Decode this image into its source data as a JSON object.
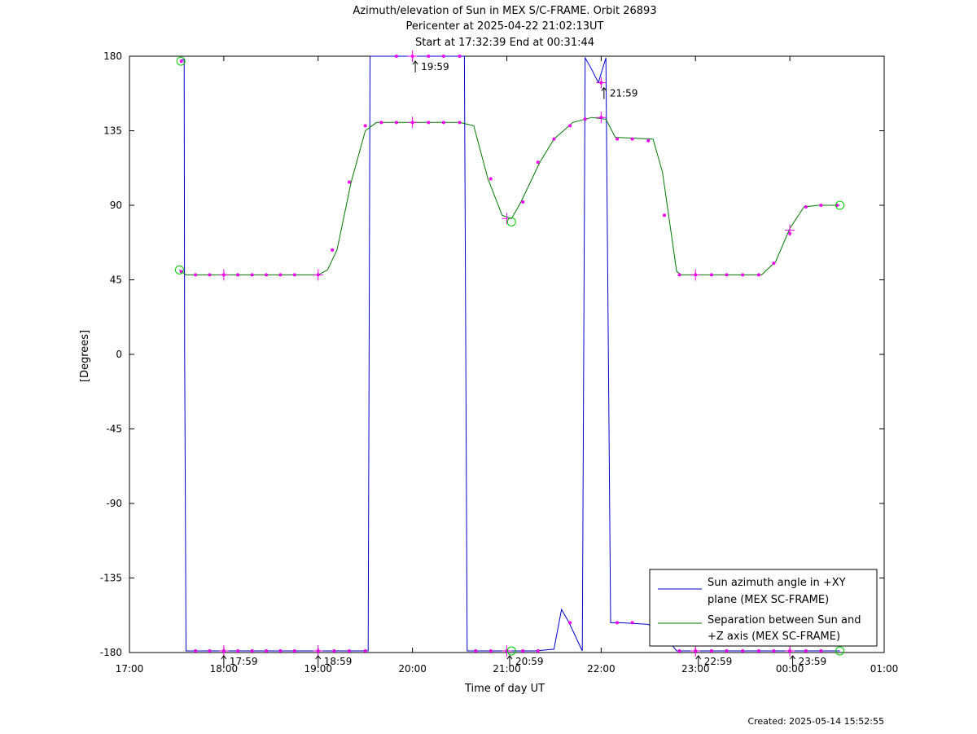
{
  "chart_data": {
    "type": "line",
    "title": [
      "Azimuth/elevation of Sun in MEX S/C-FRAME.  Orbit 26893",
      "Pericenter at 2025-04-22 21:02:13UT",
      "Start at 17:32:39 End at 00:31:44"
    ],
    "xlabel": "Time of day UT",
    "ylabel": "[Degrees]",
    "xlim_hours": [
      17,
      25
    ],
    "ylim": [
      -180,
      180
    ],
    "x_ticks": [
      {
        "h": 17,
        "label": "17:00"
      },
      {
        "h": 18,
        "label": "18:00"
      },
      {
        "h": 19,
        "label": "19:00"
      },
      {
        "h": 20,
        "label": "20:00"
      },
      {
        "h": 21,
        "label": "21:00"
      },
      {
        "h": 22,
        "label": "22:00"
      },
      {
        "h": 23,
        "label": "23:00"
      },
      {
        "h": 24,
        "label": "00:00"
      },
      {
        "h": 25,
        "label": "01:00"
      }
    ],
    "y_ticks": [
      {
        "v": 180,
        "label": "180"
      },
      {
        "v": 135,
        "label": "135"
      },
      {
        "v": 90,
        "label": "90"
      },
      {
        "v": 45,
        "label": "45"
      },
      {
        "v": 0,
        "label": "0"
      },
      {
        "v": -45,
        "label": "-45"
      },
      {
        "v": -90,
        "label": "-90"
      },
      {
        "v": -135,
        "label": "-135"
      },
      {
        "v": -180,
        "label": "-180"
      }
    ],
    "grid": false,
    "legend_position": "bottom-right",
    "series": [
      {
        "name": "Sun azimuth angle in +XY plane (MEX SC-FRAME)",
        "legend_lines": [
          "Sun azimuth angle in +XY",
          "plane (MEX SC-FRAME)"
        ],
        "color": "#0000cc",
        "points": [
          [
            17.545,
            177
          ],
          [
            17.56,
            178
          ],
          [
            17.58,
            178
          ],
          [
            17.585,
            0
          ],
          [
            17.6,
            -179
          ],
          [
            18.5,
            -179
          ],
          [
            19.5,
            -179
          ],
          [
            19.53,
            -179
          ],
          [
            19.55,
            180
          ],
          [
            20.0,
            180
          ],
          [
            20.5,
            180
          ],
          [
            20.55,
            180
          ],
          [
            20.58,
            -179
          ],
          [
            21.0,
            -179
          ],
          [
            21.3,
            -179
          ],
          [
            21.5,
            -178
          ],
          [
            21.58,
            -154
          ],
          [
            21.66,
            -162
          ],
          [
            21.8,
            -179
          ],
          [
            21.83,
            179
          ],
          [
            21.9,
            172
          ],
          [
            21.97,
            164
          ],
          [
            22.05,
            179
          ],
          [
            22.1,
            -162
          ],
          [
            22.2,
            -162
          ],
          [
            22.5,
            -163
          ],
          [
            22.7,
            -172
          ],
          [
            22.8,
            -179
          ],
          [
            23.0,
            -179
          ],
          [
            24.0,
            -179
          ],
          [
            24.53,
            -179
          ]
        ]
      },
      {
        "name": "Separation between Sun and +Z axis (MEX SC-FRAME)",
        "legend_lines": [
          "Separation between Sun and",
          "+Z axis (MEX SC-FRAME)"
        ],
        "color": "#007700",
        "points": [
          [
            17.53,
            51
          ],
          [
            17.6,
            48
          ],
          [
            18.0,
            48
          ],
          [
            18.5,
            48
          ],
          [
            19.0,
            48
          ],
          [
            19.1,
            51
          ],
          [
            19.2,
            63
          ],
          [
            19.35,
            104
          ],
          [
            19.5,
            135
          ],
          [
            19.62,
            140
          ],
          [
            20.0,
            140
          ],
          [
            20.5,
            140
          ],
          [
            20.65,
            138
          ],
          [
            20.8,
            106
          ],
          [
            20.95,
            84
          ],
          [
            21.05,
            82
          ],
          [
            21.15,
            92
          ],
          [
            21.35,
            116
          ],
          [
            21.5,
            130
          ],
          [
            21.7,
            140
          ],
          [
            21.9,
            143
          ],
          [
            22.05,
            142
          ],
          [
            22.15,
            131
          ],
          [
            22.55,
            130
          ],
          [
            22.65,
            110
          ],
          [
            22.8,
            50
          ],
          [
            22.85,
            48
          ],
          [
            23.5,
            48
          ],
          [
            23.7,
            48
          ],
          [
            23.85,
            56
          ],
          [
            24.0,
            76
          ],
          [
            24.15,
            89
          ],
          [
            24.3,
            90
          ],
          [
            24.53,
            90
          ]
        ]
      }
    ],
    "sample_markers": [
      [
        17.55,
        177
      ],
      [
        17.55,
        50
      ],
      [
        17.7,
        48
      ],
      [
        17.85,
        48
      ],
      [
        18.0,
        48
      ],
      [
        18.15,
        48
      ],
      [
        18.3,
        48
      ],
      [
        18.45,
        48
      ],
      [
        18.6,
        48
      ],
      [
        18.75,
        48
      ],
      [
        19.0,
        48
      ],
      [
        19.15,
        63
      ],
      [
        19.33,
        104
      ],
      [
        19.5,
        138
      ],
      [
        19.67,
        140
      ],
      [
        19.83,
        140
      ],
      [
        20.0,
        140
      ],
      [
        20.17,
        140
      ],
      [
        20.33,
        140
      ],
      [
        20.5,
        140
      ],
      [
        20.83,
        106
      ],
      [
        21.17,
        92
      ],
      [
        21.33,
        116
      ],
      [
        21.5,
        130
      ],
      [
        21.67,
        138
      ],
      [
        21.83,
        142
      ],
      [
        22.0,
        143
      ],
      [
        22.17,
        130
      ],
      [
        22.33,
        130
      ],
      [
        22.5,
        129
      ],
      [
        22.67,
        84
      ],
      [
        22.83,
        48
      ],
      [
        23.0,
        48
      ],
      [
        23.17,
        48
      ],
      [
        23.33,
        48
      ],
      [
        23.5,
        48
      ],
      [
        23.67,
        48
      ],
      [
        23.83,
        55
      ],
      [
        24.0,
        73
      ],
      [
        24.17,
        89
      ],
      [
        24.33,
        90
      ],
      [
        24.5,
        90
      ],
      [
        19.83,
        180
      ],
      [
        20.0,
        180
      ],
      [
        20.17,
        180
      ],
      [
        20.33,
        180
      ],
      [
        20.5,
        180
      ],
      [
        22.0,
        164
      ],
      [
        17.7,
        -179
      ],
      [
        17.85,
        -179
      ],
      [
        18.0,
        -179
      ],
      [
        18.15,
        -179
      ],
      [
        18.3,
        -179
      ],
      [
        18.45,
        -179
      ],
      [
        18.6,
        -179
      ],
      [
        18.75,
        -179
      ],
      [
        19.0,
        -179
      ],
      [
        19.17,
        -179
      ],
      [
        19.33,
        -179
      ],
      [
        19.5,
        -179
      ],
      [
        20.67,
        -179
      ],
      [
        20.83,
        -179
      ],
      [
        21.0,
        -179
      ],
      [
        21.17,
        -179
      ],
      [
        21.33,
        -179
      ],
      [
        21.67,
        -162
      ],
      [
        22.17,
        -162
      ],
      [
        22.33,
        -162
      ],
      [
        22.83,
        -179
      ],
      [
        23.0,
        -179
      ],
      [
        23.17,
        -179
      ],
      [
        23.33,
        -179
      ],
      [
        23.5,
        -179
      ],
      [
        23.67,
        -179
      ],
      [
        23.83,
        -179
      ],
      [
        24.0,
        -179
      ],
      [
        24.17,
        -179
      ],
      [
        24.33,
        -179
      ]
    ],
    "hour_markers": [
      [
        18.0,
        48
      ],
      [
        18.0,
        -179
      ],
      [
        19.0,
        48
      ],
      [
        19.0,
        -179
      ],
      [
        20.0,
        180
      ],
      [
        20.0,
        140
      ],
      [
        21.0,
        82
      ],
      [
        21.0,
        -179
      ],
      [
        22.0,
        164
      ],
      [
        22.0,
        143
      ],
      [
        23.0,
        48
      ],
      [
        23.0,
        -179
      ],
      [
        24.0,
        75
      ],
      [
        24.0,
        -179
      ]
    ],
    "start_end_circles": [
      [
        17.545,
        177
      ],
      [
        17.53,
        51
      ],
      [
        21.05,
        80
      ],
      [
        21.05,
        -179
      ],
      [
        24.53,
        90
      ],
      [
        24.53,
        -179
      ]
    ],
    "time_annotations": [
      {
        "h": 18.0,
        "v": -179,
        "label": "17:59"
      },
      {
        "h": 19.0,
        "v": -179,
        "label": "18:59"
      },
      {
        "h": 20.03,
        "v": 180,
        "label": "19:59"
      },
      {
        "h": 21.03,
        "v": -179,
        "label": "20:59"
      },
      {
        "h": 22.03,
        "v": 164,
        "label": "21:59"
      },
      {
        "h": 23.03,
        "v": -179,
        "label": "22:59"
      },
      {
        "h": 24.03,
        "v": -179,
        "label": "23:59"
      }
    ]
  },
  "footer": {
    "created": "Created: 2025-05-14 15:52:55"
  }
}
